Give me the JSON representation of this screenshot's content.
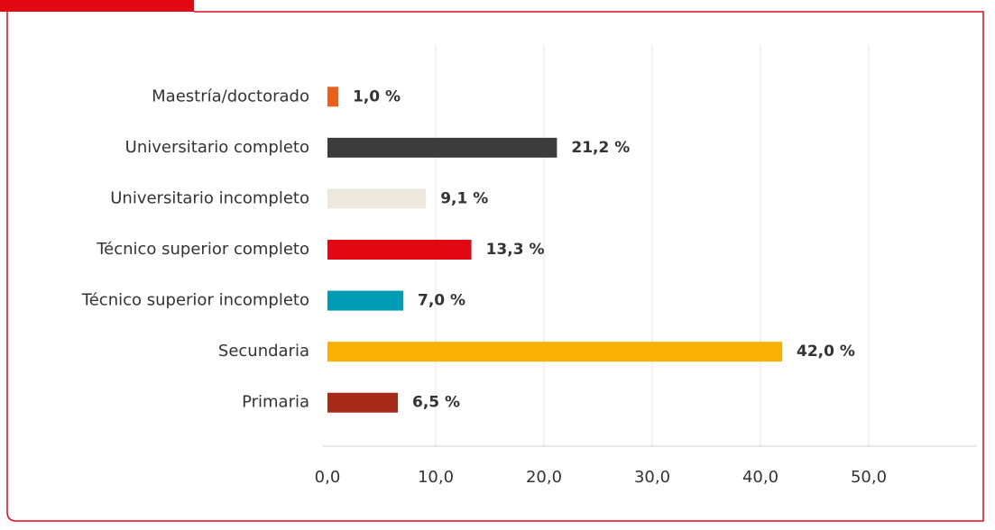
{
  "chart_data": {
    "type": "hbar",
    "categories": [
      "Maestría/doctorado",
      "Universitario completo",
      "Universitario incompleto",
      "Técnico superior completo",
      "Técnico superior incompleto",
      "Secundaria",
      "Primaria"
    ],
    "values": [
      1.0,
      21.2,
      9.1,
      13.3,
      7.0,
      42.0,
      6.5
    ],
    "value_labels": [
      "1,0 %",
      "21,2 %",
      "9,1 %",
      "13,3 %",
      "7,0 %",
      "42,0 %",
      "6,5 %"
    ],
    "colors": [
      "#e8601c",
      "#3c3c3c",
      "#ece8dc",
      "#e30613",
      "#009bb4",
      "#f9b000",
      "#a52a18"
    ],
    "xlim": [
      0,
      60
    ],
    "xticks": [
      {
        "value": 0,
        "label": "0,0"
      },
      {
        "value": 10,
        "label": "10,0"
      },
      {
        "value": 20,
        "label": "20,0"
      },
      {
        "value": 30,
        "label": "30,0"
      },
      {
        "value": 40,
        "label": "40,0"
      },
      {
        "value": 50,
        "label": "50,0"
      }
    ],
    "grid": true
  }
}
